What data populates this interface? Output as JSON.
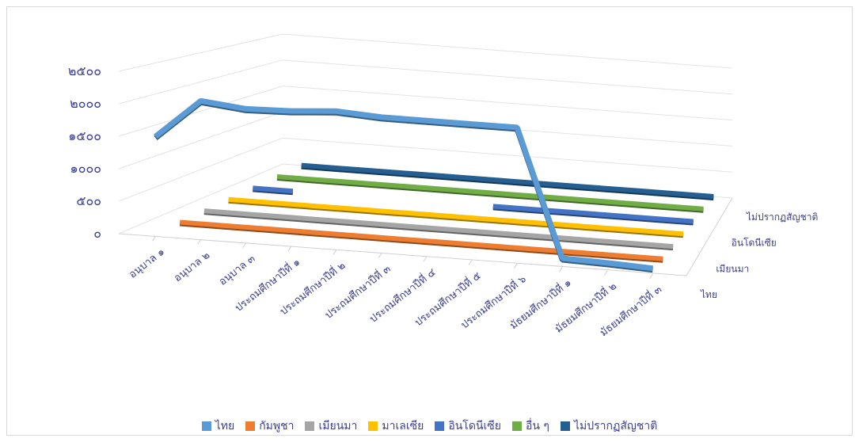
{
  "chart_data": {
    "type": "line",
    "subtype": "3d-line",
    "title": "",
    "categories": [
      "อนุบาล ๑",
      "อนุบาล ๒",
      "อนุบาล ๓",
      "ประถมศึกษาปีที่ ๑",
      "ประถมศึกษาปีที่ ๒",
      "ประถมศึกษาปีที่ ๓",
      "ประถมศึกษาปีที่ ๔",
      "ประถมศึกษาปีที่ ๕",
      "ประถมศึกษาปีที่ ๖",
      "มัธยมศึกษาปีที่ ๑",
      "มัธยมศึกษาปีที่ ๒",
      "มัธยมศึกษาปีที่ ๓"
    ],
    "y_ticks": [
      "๐",
      "๕๐๐",
      "๑๐๐๐",
      "๑๕๐๐",
      "๒๐๐๐",
      "๒๕๐๐"
    ],
    "ylim": [
      0,
      2500
    ],
    "depth_axis_labels": [
      "ไทย",
      "เมียนมา",
      "อินโดนีเซีย",
      "ไม่ปรากฏสัญชาติ"
    ],
    "grid": true,
    "legend_position": "bottom",
    "series": [
      {
        "name": "ไทย",
        "color": "#5b9bd5",
        "values": [
          1500,
          2100,
          2030,
          2050,
          2100,
          2060,
          2060,
          2060,
          2060,
          100,
          80,
          50
        ]
      },
      {
        "name": "กัมพูชา",
        "color": "#ed7d31",
        "values": [
          3,
          3,
          3,
          3,
          3,
          3,
          3,
          3,
          3,
          3,
          3,
          3
        ]
      },
      {
        "name": "เมียนมา",
        "color": "#a5a5a5",
        "values": [
          3,
          3,
          3,
          3,
          3,
          3,
          3,
          3,
          3,
          3,
          3,
          3
        ]
      },
      {
        "name": "มาเลเซีย",
        "color": "#ffc000",
        "values": [
          3,
          3,
          3,
          3,
          3,
          3,
          3,
          3,
          3,
          3,
          3,
          3
        ]
      },
      {
        "name": "อินโดนีเซีย",
        "color": "#4472c4",
        "values": [
          3,
          3,
          null,
          null,
          null,
          null,
          3,
          3,
          3,
          3,
          3,
          3
        ]
      },
      {
        "name": "อื่น ๆ",
        "color": "#70ad47",
        "values": [
          3,
          3,
          3,
          3,
          3,
          3,
          3,
          3,
          3,
          3,
          3,
          3
        ]
      },
      {
        "name": "ไม่ปรากฏสัญชาติ",
        "color": "#255e91",
        "values": [
          3,
          3,
          3,
          3,
          3,
          3,
          3,
          3,
          3,
          3,
          3,
          3
        ]
      }
    ]
  }
}
